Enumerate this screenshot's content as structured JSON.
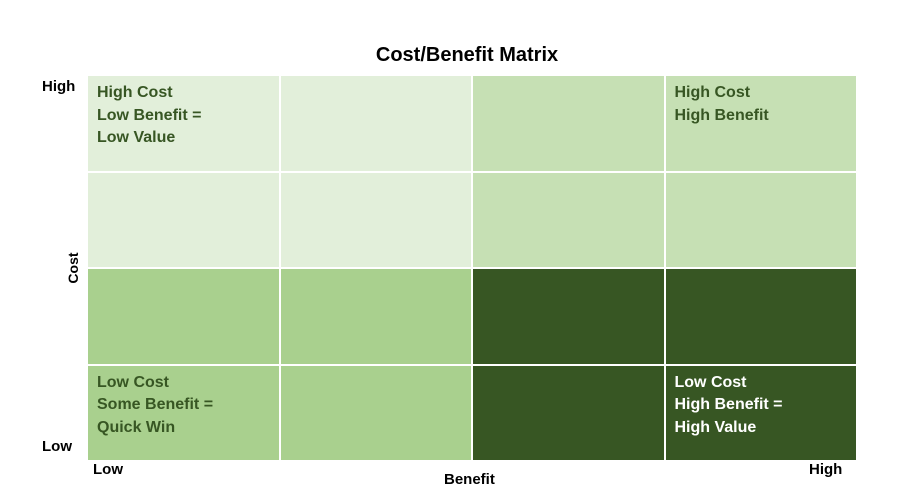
{
  "title": "Cost/Benefit Matrix",
  "axes": {
    "y_label": "Cost",
    "x_label": "Benefit",
    "y_high": "High",
    "y_low": "Low",
    "x_low": "Low",
    "x_high": "High"
  },
  "quadrant_colors": {
    "high_cost_low_benefit": "#e2efda",
    "high_cost_high_benefit": "#c6e0b4",
    "low_cost_low_benefit": "#a9d08e",
    "low_cost_high_benefit": "#375623"
  },
  "text_colors": {
    "dark": "#375623",
    "light": "#ffffff"
  },
  "cells": [
    {
      "label": "High Cost\nLow Benefit =\nLow Value",
      "color": "#e2efda",
      "text": "#375623"
    },
    {
      "label": "",
      "color": "#e2efda",
      "text": "#375623"
    },
    {
      "label": "",
      "color": "#c6e0b4",
      "text": "#375623"
    },
    {
      "label": "High Cost\nHigh Benefit",
      "color": "#c6e0b4",
      "text": "#375623"
    },
    {
      "label": "",
      "color": "#e2efda",
      "text": "#375623"
    },
    {
      "label": "",
      "color": "#e2efda",
      "text": "#375623"
    },
    {
      "label": "",
      "color": "#c6e0b4",
      "text": "#375623"
    },
    {
      "label": "",
      "color": "#c6e0b4",
      "text": "#375623"
    },
    {
      "label": "",
      "color": "#a9d08e",
      "text": "#375623"
    },
    {
      "label": "",
      "color": "#a9d08e",
      "text": "#375623"
    },
    {
      "label": "",
      "color": "#375623",
      "text": "#ffffff"
    },
    {
      "label": "",
      "color": "#375623",
      "text": "#ffffff"
    },
    {
      "label": "Low Cost\nSome Benefit =\nQuick Win",
      "color": "#a9d08e",
      "text": "#375623"
    },
    {
      "label": "",
      "color": "#a9d08e",
      "text": "#375623"
    },
    {
      "label": "",
      "color": "#375623",
      "text": "#ffffff"
    },
    {
      "label": "Low Cost\nHigh Benefit =\nHigh Value",
      "color": "#375623",
      "text": "#ffffff"
    }
  ]
}
